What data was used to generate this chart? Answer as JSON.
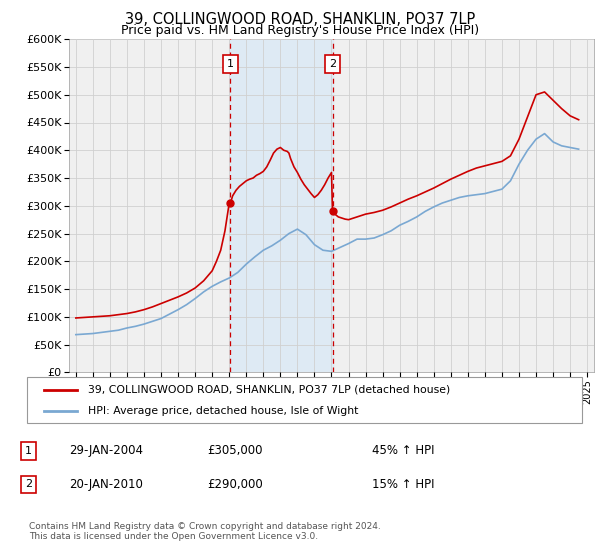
{
  "title": "39, COLLINGWOOD ROAD, SHANKLIN, PO37 7LP",
  "subtitle": "Price paid vs. HM Land Registry's House Price Index (HPI)",
  "title_fontsize": 10.5,
  "subtitle_fontsize": 9,
  "legend_line1": "39, COLLINGWOOD ROAD, SHANKLIN, PO37 7LP (detached house)",
  "legend_line2": "HPI: Average price, detached house, Isle of Wight",
  "sale1_date": 2004.07,
  "sale1_price": 305000,
  "sale1_label": "1",
  "sale1_text": "29-JAN-2004",
  "sale1_amount": "£305,000",
  "sale1_hpi": "45% ↑ HPI",
  "sale2_date": 2010.06,
  "sale2_price": 290000,
  "sale2_label": "2",
  "sale2_text": "20-JAN-2010",
  "sale2_amount": "£290,000",
  "sale2_hpi": "15% ↑ HPI",
  "red_color": "#cc0000",
  "blue_color": "#7aa8d2",
  "shade_color": "#deeaf4",
  "grid_color": "#d0d0d0",
  "bg_color": "#f0f0f0",
  "ylim": [
    0,
    600000
  ],
  "yticks": [
    0,
    50000,
    100000,
    150000,
    200000,
    250000,
    300000,
    350000,
    400000,
    450000,
    500000,
    550000,
    600000
  ],
  "footer": "Contains HM Land Registry data © Crown copyright and database right 2024.\nThis data is licensed under the Open Government Licence v3.0.",
  "hpi_years": [
    1995.0,
    1995.5,
    1996.0,
    1996.5,
    1997.0,
    1997.5,
    1998.0,
    1998.5,
    1999.0,
    1999.5,
    2000.0,
    2000.5,
    2001.0,
    2001.5,
    2002.0,
    2002.5,
    2003.0,
    2003.5,
    2004.0,
    2004.5,
    2005.0,
    2005.5,
    2006.0,
    2006.5,
    2007.0,
    2007.5,
    2008.0,
    2008.5,
    2009.0,
    2009.5,
    2010.0,
    2010.5,
    2011.0,
    2011.5,
    2012.0,
    2012.5,
    2013.0,
    2013.5,
    2014.0,
    2014.5,
    2015.0,
    2015.5,
    2016.0,
    2016.5,
    2017.0,
    2017.5,
    2018.0,
    2018.5,
    2019.0,
    2019.5,
    2020.0,
    2020.5,
    2021.0,
    2021.5,
    2022.0,
    2022.5,
    2023.0,
    2023.5,
    2024.0,
    2024.5
  ],
  "hpi_values": [
    68000,
    69000,
    70000,
    72000,
    74000,
    76000,
    80000,
    83000,
    87000,
    92000,
    97000,
    105000,
    113000,
    122000,
    133000,
    145000,
    155000,
    163000,
    170000,
    180000,
    195000,
    208000,
    220000,
    228000,
    238000,
    250000,
    258000,
    248000,
    230000,
    220000,
    218000,
    225000,
    232000,
    240000,
    240000,
    242000,
    248000,
    255000,
    265000,
    272000,
    280000,
    290000,
    298000,
    305000,
    310000,
    315000,
    318000,
    320000,
    322000,
    326000,
    330000,
    345000,
    375000,
    400000,
    420000,
    430000,
    415000,
    408000,
    405000,
    402000
  ],
  "red_years": [
    1995.0,
    1995.5,
    1996.0,
    1996.5,
    1997.0,
    1997.5,
    1998.0,
    1998.5,
    1999.0,
    1999.5,
    2000.0,
    2000.5,
    2001.0,
    2001.5,
    2002.0,
    2002.5,
    2003.0,
    2003.25,
    2003.5,
    2003.75,
    2004.0,
    2004.07,
    2004.2,
    2004.4,
    2004.6,
    2004.8,
    2005.0,
    2005.2,
    2005.4,
    2005.6,
    2005.8,
    2006.0,
    2006.2,
    2006.4,
    2006.6,
    2006.8,
    2007.0,
    2007.2,
    2007.4,
    2007.5,
    2007.6,
    2007.8,
    2008.0,
    2008.2,
    2008.4,
    2008.6,
    2008.8,
    2009.0,
    2009.2,
    2009.4,
    2009.6,
    2009.8,
    2010.0,
    2010.06,
    2010.2,
    2010.4,
    2010.6,
    2010.8,
    2011.0,
    2011.5,
    2012.0,
    2012.5,
    2013.0,
    2013.5,
    2014.0,
    2014.5,
    2015.0,
    2015.5,
    2016.0,
    2016.5,
    2017.0,
    2017.5,
    2018.0,
    2018.5,
    2019.0,
    2019.5,
    2020.0,
    2020.5,
    2021.0,
    2021.5,
    2022.0,
    2022.5,
    2023.0,
    2023.5,
    2024.0,
    2024.5
  ],
  "red_values": [
    98000,
    99000,
    100000,
    101000,
    102000,
    104000,
    106000,
    109000,
    113000,
    118000,
    124000,
    130000,
    136000,
    143000,
    152000,
    165000,
    183000,
    200000,
    220000,
    255000,
    305000,
    305000,
    318000,
    328000,
    335000,
    340000,
    345000,
    348000,
    350000,
    355000,
    358000,
    362000,
    370000,
    382000,
    395000,
    402000,
    405000,
    400000,
    398000,
    395000,
    385000,
    370000,
    360000,
    348000,
    338000,
    330000,
    322000,
    315000,
    320000,
    328000,
    338000,
    350000,
    360000,
    290000,
    285000,
    280000,
    278000,
    276000,
    275000,
    280000,
    285000,
    288000,
    292000,
    298000,
    305000,
    312000,
    318000,
    325000,
    332000,
    340000,
    348000,
    355000,
    362000,
    368000,
    372000,
    376000,
    380000,
    390000,
    420000,
    460000,
    500000,
    505000,
    490000,
    475000,
    462000,
    455000
  ]
}
